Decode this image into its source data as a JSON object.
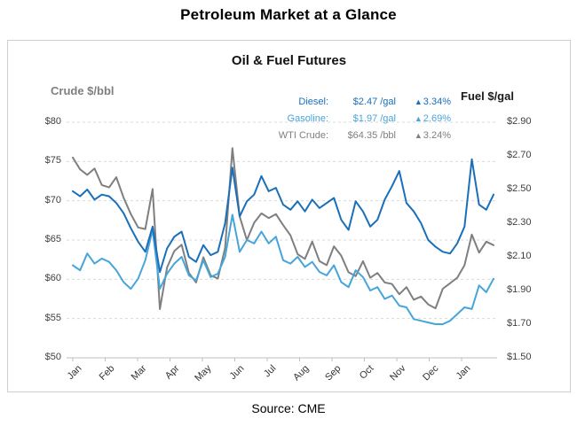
{
  "page": {
    "title": "Petroleum Market at a Glance",
    "source": "Source: CME"
  },
  "chart_data": {
    "type": "line",
    "title": "Oil & Fuel Futures",
    "grid": "horizontal-dashed",
    "legend_position": "top-right",
    "up_icon": "▲",
    "left_axis": {
      "title": "Crude $/bbl",
      "min": 50,
      "max": 80,
      "tick_labels": [
        "$80",
        "$75",
        "$70",
        "$65",
        "$60",
        "$55",
        "$50"
      ],
      "tick_values": [
        80,
        75,
        70,
        65,
        60,
        55,
        50
      ]
    },
    "right_axis": {
      "title": "Fuel $/gal",
      "min": 1.5,
      "max": 2.9,
      "tick_labels": [
        "$2.90",
        "$2.70",
        "$2.50",
        "$2.30",
        "$2.10",
        "$1.90",
        "$1.70",
        "$1.50"
      ],
      "tick_values": [
        2.9,
        2.7,
        2.5,
        2.3,
        2.1,
        1.9,
        1.7,
        1.5
      ]
    },
    "x_tick_labels": [
      "Jan",
      "Feb",
      "Mar",
      "Apr",
      "May",
      "Jun",
      "Jul",
      "Aug",
      "Sep",
      "Oct",
      "Nov",
      "Dec",
      "Jan"
    ],
    "series": [
      {
        "name": "Diesel",
        "legend_label": "Diesel:",
        "value_label": "$2.47 /gal",
        "change_label": "3.34%",
        "axis": "right",
        "color": "#1a6fba",
        "values": [
          2.49,
          2.46,
          2.5,
          2.44,
          2.47,
          2.46,
          2.42,
          2.36,
          2.27,
          2.19,
          2.13,
          2.28,
          2.01,
          2.15,
          2.22,
          2.25,
          2.1,
          2.07,
          2.17,
          2.11,
          2.13,
          2.3,
          2.63,
          2.34,
          2.43,
          2.47,
          2.58,
          2.49,
          2.51,
          2.41,
          2.38,
          2.43,
          2.37,
          2.44,
          2.39,
          2.42,
          2.45,
          2.32,
          2.26,
          2.43,
          2.37,
          2.28,
          2.32,
          2.44,
          2.52,
          2.61,
          2.42,
          2.37,
          2.3,
          2.2,
          2.16,
          2.13,
          2.12,
          2.18,
          2.28,
          2.68,
          2.41,
          2.38,
          2.47
        ]
      },
      {
        "name": "Gasoline",
        "legend_label": "Gasoline:",
        "value_label": "$1.97 /gal",
        "change_label": "2.69%",
        "axis": "right",
        "color": "#46a5da",
        "values": [
          2.05,
          2.02,
          2.12,
          2.06,
          2.09,
          2.07,
          2.02,
          1.95,
          1.91,
          1.97,
          2.08,
          2.26,
          1.91,
          2.0,
          2.06,
          2.1,
          1.99,
          1.96,
          2.08,
          1.98,
          2.0,
          2.1,
          2.35,
          2.13,
          2.2,
          2.18,
          2.25,
          2.18,
          2.22,
          2.08,
          2.06,
          2.1,
          2.04,
          2.07,
          2.01,
          1.99,
          2.05,
          1.95,
          1.92,
          2.02,
          1.98,
          1.9,
          1.92,
          1.85,
          1.87,
          1.81,
          1.8,
          1.73,
          1.72,
          1.71,
          1.7,
          1.7,
          1.72,
          1.76,
          1.8,
          1.79,
          1.93,
          1.89,
          1.97
        ]
      },
      {
        "name": "WTI Crude",
        "legend_label": "WTI Crude:",
        "value_label": "$64.35 /bbl",
        "change_label": "3.24%",
        "axis": "left",
        "color": "#7f7f7f",
        "values": [
          75.5,
          74.0,
          73.3,
          74.1,
          72.0,
          71.7,
          73.0,
          70.4,
          68.3,
          66.6,
          66.4,
          71.5,
          56.2,
          61.5,
          63.6,
          64.4,
          60.8,
          59.6,
          62.8,
          60.5,
          60.1,
          64.0,
          76.7,
          68.0,
          65.0,
          67.2,
          68.4,
          67.8,
          68.3,
          66.9,
          65.6,
          63.2,
          62.6,
          64.8,
          62.3,
          61.8,
          64.2,
          63.0,
          60.9,
          60.4,
          62.3,
          60.2,
          60.8,
          59.6,
          59.4,
          58.1,
          59.0,
          57.4,
          57.8,
          56.8,
          56.3,
          58.8,
          59.5,
          60.2,
          61.8,
          65.7,
          63.4,
          64.8,
          64.35
        ]
      }
    ]
  }
}
